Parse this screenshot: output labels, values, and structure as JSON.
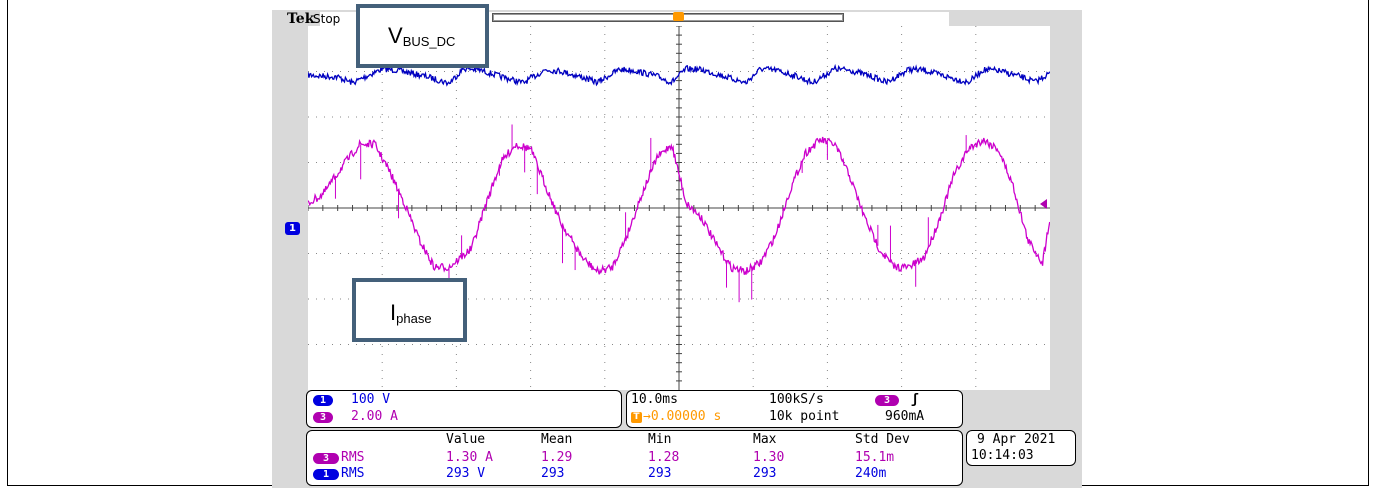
{
  "scope": {
    "brand": "Tek",
    "state": "Stop",
    "trigger_marker": "T",
    "ch1_ground_marker": "1"
  },
  "annotations": {
    "vbus_main": "V",
    "vbus_sub": "BUS_DC",
    "iphase_main": "I",
    "iphase_sub": "phase"
  },
  "channels": [
    {
      "badge": "1",
      "scale": "100 V",
      "color": "#0000e0"
    },
    {
      "badge": "3",
      "scale": "2.00 A",
      "color": "#b000b0"
    }
  ],
  "timebase": {
    "time_div": "10.0ms",
    "sample_rate": "100kS/s",
    "record_length": "10k point",
    "trigger_position": "→0.00000 s",
    "trigger_channel": "3",
    "trigger_slope": "ʃ",
    "trigger_level": "960mA"
  },
  "measurements": {
    "headers": [
      "Value",
      "Mean",
      "Min",
      "Max",
      "Std Dev"
    ],
    "rows": [
      {
        "badge": "3",
        "name": "RMS",
        "value": "1.30 A",
        "mean": "1.29",
        "min": "1.28",
        "max": "1.30",
        "std": "15.1m",
        "color": "#b000b0"
      },
      {
        "badge": "1",
        "name": "RMS",
        "value": "293 V",
        "mean": "293",
        "min": "293",
        "max": "293",
        "std": "240m",
        "color": "#0000e0"
      }
    ]
  },
  "datetime": {
    "date": "9 Apr  2021",
    "time": "10:14:03"
  },
  "chart_data": {
    "type": "line",
    "title": "",
    "xlabel": "",
    "ylabel": "",
    "x_divisions": 10,
    "y_divisions": 8,
    "x_unit": "ms",
    "xlim": [
      -50,
      50
    ],
    "grid": true,
    "series": [
      {
        "name": "V_BUS_DC",
        "color": "#0000c0",
        "unit": "V",
        "volts_per_div": 100,
        "x": [
          -50,
          -46,
          -44,
          -40,
          -38,
          -34,
          -31,
          -29,
          -27,
          -24,
          -21,
          -18,
          -16,
          -13,
          -11,
          -8,
          -6,
          -3,
          -1,
          1,
          3,
          6,
          9,
          11,
          13,
          16,
          18,
          21,
          23,
          26,
          28,
          31,
          33,
          36,
          39,
          41,
          43,
          46,
          48,
          50
        ],
        "values": [
          292,
          288,
          275,
          306,
          303,
          289,
          274,
          307,
          304,
          289,
          275,
          304,
          301,
          287,
          276,
          305,
          302,
          290,
          276,
          306,
          304,
          290,
          275,
          306,
          303,
          289,
          275,
          306,
          303,
          289,
          276,
          305,
          303,
          289,
          276,
          304,
          302,
          289,
          277,
          297
        ]
      },
      {
        "name": "I_phase",
        "color": "#cc00cc",
        "unit": "A",
        "amps_per_div": 2,
        "x": [
          -50,
          -48,
          -45,
          -43,
          -41,
          -39,
          -37,
          -35,
          -33,
          -31,
          -28,
          -26,
          -24,
          -22,
          -20,
          -18,
          -16,
          -13,
          -11,
          -9,
          -7,
          -5,
          -3,
          -1,
          1,
          3,
          5,
          7,
          9,
          11,
          13,
          15,
          17,
          19,
          21,
          23,
          25,
          27,
          29,
          31,
          33,
          35,
          37,
          39,
          41,
          43,
          45,
          47,
          49,
          50
        ],
        "values": [
          0.2,
          0.6,
          2.0,
          2.8,
          2.8,
          1.6,
          0.2,
          -1.4,
          -2.6,
          -2.6,
          -1.8,
          0.2,
          2.0,
          2.8,
          2.6,
          1.0,
          -0.6,
          -2.2,
          -2.8,
          -2.6,
          -1.2,
          0.6,
          2.2,
          2.8,
          0.2,
          -0.4,
          -1.6,
          -2.6,
          -2.8,
          -2.4,
          -1.2,
          0.8,
          2.4,
          3.0,
          2.8,
          1.4,
          -0.4,
          -1.8,
          -2.6,
          -2.6,
          -2.2,
          -0.6,
          1.4,
          2.6,
          3.0,
          2.6,
          1.0,
          -1.4,
          -2.4,
          -0.4
        ]
      }
    ]
  }
}
